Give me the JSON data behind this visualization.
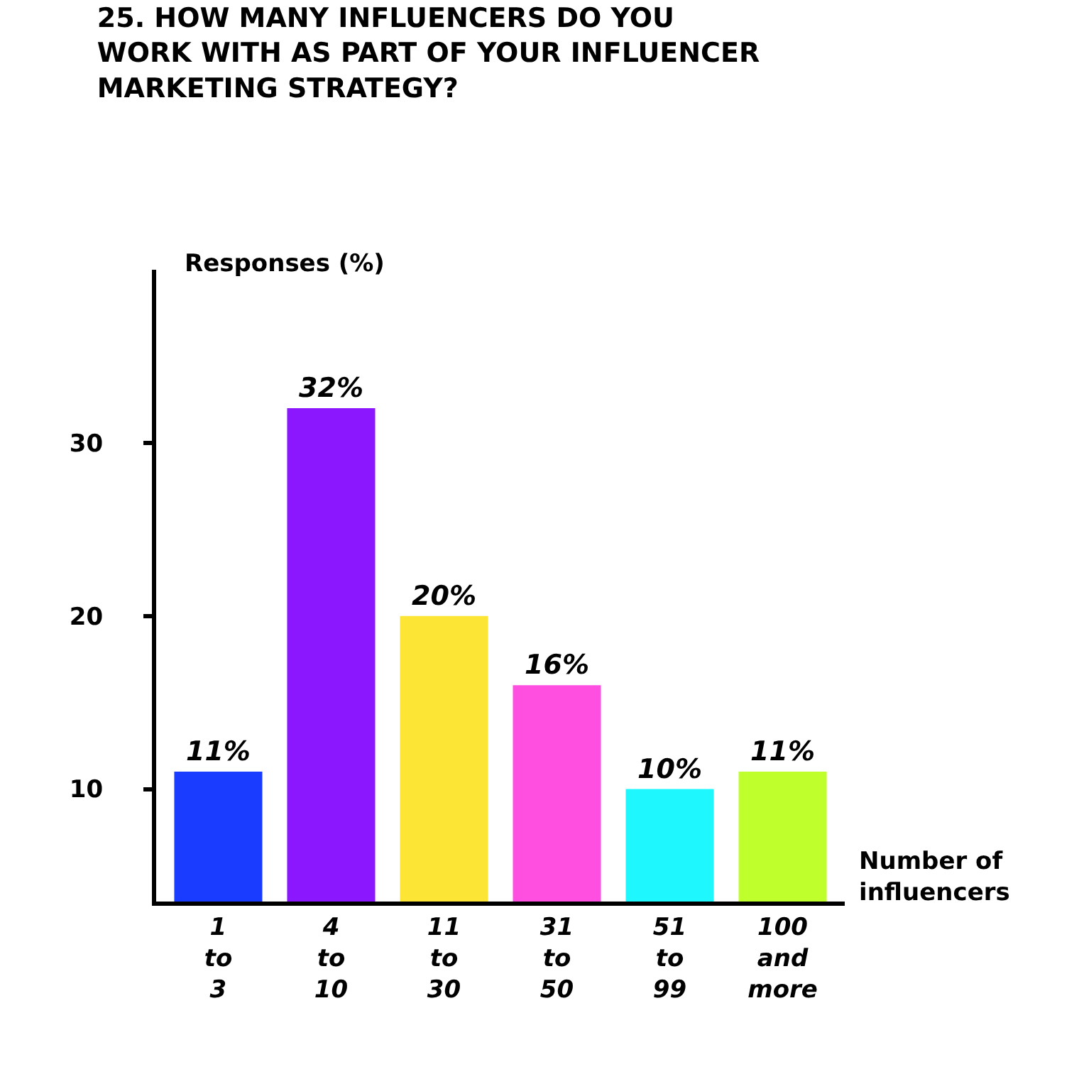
{
  "chart_data": {
    "type": "bar",
    "title": "25. HOW MANY INFLUENCERS DO YOU\nWORK WITH AS PART OF YOUR INFLUENCER\nMARKETING STRATEGY?",
    "xlabel": "Number of\ninfluencers",
    "ylabel": "Responses (%)",
    "categories": [
      "1\nto\n3",
      "4\nto\n10",
      "11\nto\n30",
      "31\nto\n50",
      "51\nto\n99",
      "100\nand\nmore"
    ],
    "values": [
      11,
      32,
      20,
      16,
      10,
      11
    ],
    "value_labels": [
      "11%",
      "32%",
      "20%",
      "16%",
      "10%",
      "11%"
    ],
    "colors": [
      "#1a3cff",
      "#8b17ff",
      "#fce534",
      "#ff4fe0",
      "#1ff7ff",
      "#bfff2b"
    ],
    "ylim": [
      3.5,
      40
    ],
    "yticks": [
      10,
      20,
      30
    ],
    "legend": false
  }
}
